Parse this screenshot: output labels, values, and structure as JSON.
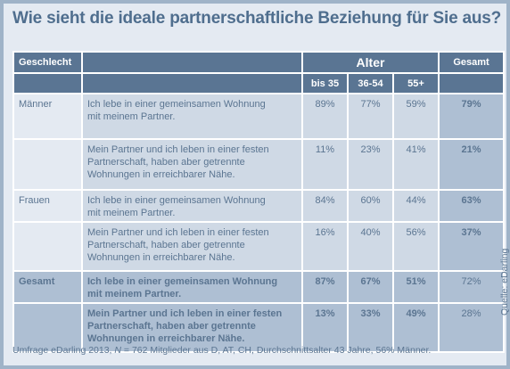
{
  "title": "Wie sieht die ideale partnerschaftliche Beziehung für Sie aus?",
  "header": {
    "geschlecht": "Geschlecht",
    "alter": "Alter",
    "gesamt": "Gesamt",
    "age_groups": [
      "bis 35",
      "36-54",
      "55+"
    ]
  },
  "rows": [
    {
      "group": "Männer",
      "line1": "Ich lebe in einer gemeinsamen Wohnung",
      "line2": "mit meinem Partner.",
      "line3": "",
      "v1": "89%",
      "v2": "77%",
      "v3": "59%",
      "total": "79%"
    },
    {
      "group": "",
      "line1": "Mein Partner und ich leben in einer festen",
      "line2": "Partnerschaft, haben aber getrennte",
      "line3": "Wohnungen in erreichbarer Nähe.",
      "v1": "11%",
      "v2": "23%",
      "v3": "41%",
      "total": "21%"
    },
    {
      "group": "Frauen",
      "line1": "Ich lebe in einer gemeinsamen Wohnung",
      "line2": "mit meinem Partner.",
      "line3": "",
      "v1": "84%",
      "v2": "60%",
      "v3": "44%",
      "total": "63%"
    },
    {
      "group": "",
      "line1": "Mein Partner und ich leben in einer festen",
      "line2": "Partnerschaft, haben aber getrennte",
      "line3": "Wohnungen in erreichbarer Nähe.",
      "v1": "16%",
      "v2": "40%",
      "v3": "56%",
      "total": "37%"
    },
    {
      "group": "Gesamt",
      "line1": "Ich lebe in einer gemeinsamen Wohnung",
      "line2": "mit meinem Partner.",
      "line3": "",
      "v1": "87%",
      "v2": "67%",
      "v3": "51%",
      "total": "72%"
    },
    {
      "group": "",
      "line1": "Mein Partner und ich leben in einer festen",
      "line2": "Partnerschaft, haben aber getrennte",
      "line3": "Wohnungen in erreichbarer Nähe.",
      "v1": "13%",
      "v2": "33%",
      "v3": "49%",
      "total": "28%"
    }
  ],
  "footer": {
    "pre": "Umfrage eDarling 2013, ",
    "n_label": "N",
    "post": " = 762 Mitglieder aus D, AT, CH, Durchschnittsalter 43 Jahre, 56% Männer."
  },
  "source": "Quelle: eDarling"
}
